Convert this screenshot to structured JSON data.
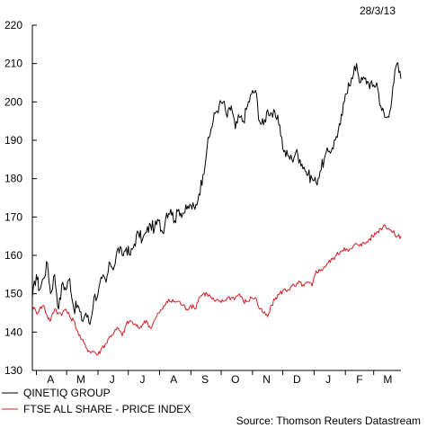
{
  "chart_data": {
    "type": "line",
    "date": "28/3/13",
    "source": "Source: Thomson Reuters Datastream",
    "y_range": [
      130,
      220
    ],
    "y_ticks": [
      130,
      140,
      150,
      160,
      170,
      180,
      190,
      200,
      210,
      220
    ],
    "x_range": [
      "2012-03-28",
      "2013-03-28"
    ],
    "months": [
      {
        "label": "A",
        "date": "2012-04-15"
      },
      {
        "label": "M",
        "date": "2012-05-15"
      },
      {
        "label": "J",
        "date": "2012-06-15"
      },
      {
        "label": "J",
        "date": "2012-07-15"
      },
      {
        "label": "A",
        "date": "2012-08-15"
      },
      {
        "label": "S",
        "date": "2012-09-15"
      },
      {
        "label": "O",
        "date": "2012-10-15"
      },
      {
        "label": "N",
        "date": "2012-11-15"
      },
      {
        "label": "D",
        "date": "2012-12-15"
      },
      {
        "label": "J",
        "date": "2013-01-15"
      },
      {
        "label": "F",
        "date": "2013-02-15"
      },
      {
        "label": "M",
        "date": "2013-03-15"
      }
    ],
    "grid": false,
    "legend_position": "bottom-left",
    "series": [
      {
        "name": "QINETIQ GROUP",
        "color": "#000000",
        "points": [
          [
            "2012-03-28",
            149
          ],
          [
            "2012-04-01",
            155
          ],
          [
            "2012-04-04",
            151
          ],
          [
            "2012-04-08",
            154
          ],
          [
            "2012-04-12",
            158
          ],
          [
            "2012-04-15",
            150
          ],
          [
            "2012-04-19",
            155
          ],
          [
            "2012-04-23",
            146
          ],
          [
            "2012-04-27",
            153
          ],
          [
            "2012-04-30",
            151
          ],
          [
            "2012-05-04",
            154
          ],
          [
            "2012-05-08",
            146
          ],
          [
            "2012-05-12",
            147
          ],
          [
            "2012-05-16",
            143
          ],
          [
            "2012-05-20",
            145
          ],
          [
            "2012-05-24",
            142
          ],
          [
            "2012-05-28",
            149
          ],
          [
            "2012-06-01",
            150
          ],
          [
            "2012-06-05",
            154
          ],
          [
            "2012-06-09",
            153
          ],
          [
            "2012-06-13",
            158
          ],
          [
            "2012-06-17",
            157
          ],
          [
            "2012-06-21",
            162
          ],
          [
            "2012-06-25",
            160
          ],
          [
            "2012-06-29",
            162
          ],
          [
            "2012-07-03",
            160
          ],
          [
            "2012-07-07",
            163
          ],
          [
            "2012-07-11",
            166
          ],
          [
            "2012-07-15",
            164
          ],
          [
            "2012-07-19",
            166
          ],
          [
            "2012-07-23",
            168
          ],
          [
            "2012-07-27",
            167
          ],
          [
            "2012-07-31",
            169
          ],
          [
            "2012-08-04",
            166
          ],
          [
            "2012-08-08",
            171
          ],
          [
            "2012-08-12",
            172
          ],
          [
            "2012-08-16",
            169
          ],
          [
            "2012-08-20",
            172
          ],
          [
            "2012-08-24",
            171
          ],
          [
            "2012-08-28",
            172
          ],
          [
            "2012-09-01",
            173
          ],
          [
            "2012-09-05",
            172
          ],
          [
            "2012-09-09",
            176
          ],
          [
            "2012-09-13",
            181
          ],
          [
            "2012-09-17",
            188
          ],
          [
            "2012-09-21",
            193
          ],
          [
            "2012-09-25",
            197
          ],
          [
            "2012-09-29",
            199
          ],
          [
            "2012-10-03",
            200
          ],
          [
            "2012-10-07",
            196
          ],
          [
            "2012-10-11",
            199
          ],
          [
            "2012-10-15",
            193
          ],
          [
            "2012-10-19",
            196
          ],
          [
            "2012-10-23",
            195
          ],
          [
            "2012-10-27",
            199
          ],
          [
            "2012-10-31",
            202
          ],
          [
            "2012-11-04",
            203
          ],
          [
            "2012-11-08",
            195
          ],
          [
            "2012-11-12",
            194
          ],
          [
            "2012-11-16",
            198
          ],
          [
            "2012-11-20",
            197
          ],
          [
            "2012-11-24",
            196
          ],
          [
            "2012-11-28",
            194
          ],
          [
            "2012-12-02",
            187
          ],
          [
            "2012-12-06",
            186
          ],
          [
            "2012-12-10",
            185
          ],
          [
            "2012-12-14",
            187
          ],
          [
            "2012-12-18",
            185
          ],
          [
            "2012-12-22",
            183
          ],
          [
            "2012-12-26",
            181
          ],
          [
            "2012-12-30",
            180
          ],
          [
            "2013-01-03",
            179
          ],
          [
            "2013-01-07",
            182
          ],
          [
            "2013-01-11",
            185
          ],
          [
            "2013-01-15",
            187
          ],
          [
            "2013-01-19",
            188
          ],
          [
            "2013-01-23",
            191
          ],
          [
            "2013-01-27",
            194
          ],
          [
            "2013-01-31",
            200
          ],
          [
            "2013-02-04",
            205
          ],
          [
            "2013-02-08",
            206
          ],
          [
            "2013-02-12",
            210
          ],
          [
            "2013-02-16",
            205
          ],
          [
            "2013-02-20",
            206
          ],
          [
            "2013-02-24",
            205
          ],
          [
            "2013-02-28",
            204
          ],
          [
            "2013-03-04",
            205
          ],
          [
            "2013-03-08",
            199
          ],
          [
            "2013-03-12",
            196
          ],
          [
            "2013-03-16",
            196
          ],
          [
            "2013-03-20",
            204
          ],
          [
            "2013-03-24",
            210
          ],
          [
            "2013-03-28",
            206
          ]
        ]
      },
      {
        "name": "FTSE ALL SHARE - PRICE INDEX",
        "color": "#d32026",
        "points": [
          [
            "2012-03-28",
            147
          ],
          [
            "2012-04-01",
            145
          ],
          [
            "2012-04-04",
            146
          ],
          [
            "2012-04-08",
            147
          ],
          [
            "2012-04-12",
            144
          ],
          [
            "2012-04-15",
            143
          ],
          [
            "2012-04-19",
            146
          ],
          [
            "2012-04-23",
            145
          ],
          [
            "2012-04-27",
            145
          ],
          [
            "2012-04-30",
            146
          ],
          [
            "2012-05-04",
            144
          ],
          [
            "2012-05-08",
            143
          ],
          [
            "2012-05-12",
            140
          ],
          [
            "2012-05-16",
            138
          ],
          [
            "2012-05-20",
            136
          ],
          [
            "2012-05-24",
            135
          ],
          [
            "2012-05-28",
            135
          ],
          [
            "2012-06-01",
            134
          ],
          [
            "2012-06-05",
            136
          ],
          [
            "2012-06-09",
            137
          ],
          [
            "2012-06-13",
            139
          ],
          [
            "2012-06-17",
            140
          ],
          [
            "2012-06-21",
            141
          ],
          [
            "2012-06-25",
            139
          ],
          [
            "2012-06-29",
            142
          ],
          [
            "2012-07-03",
            143
          ],
          [
            "2012-07-07",
            142
          ],
          [
            "2012-07-11",
            141
          ],
          [
            "2012-07-15",
            142
          ],
          [
            "2012-07-19",
            143
          ],
          [
            "2012-07-23",
            141
          ],
          [
            "2012-07-27",
            143
          ],
          [
            "2012-07-31",
            145
          ],
          [
            "2012-08-04",
            146
          ],
          [
            "2012-08-08",
            148
          ],
          [
            "2012-08-12",
            148
          ],
          [
            "2012-08-16",
            148
          ],
          [
            "2012-08-20",
            148
          ],
          [
            "2012-08-24",
            147
          ],
          [
            "2012-08-28",
            146
          ],
          [
            "2012-09-01",
            147
          ],
          [
            "2012-09-05",
            146
          ],
          [
            "2012-09-09",
            149
          ],
          [
            "2012-09-13",
            150
          ],
          [
            "2012-09-17",
            150
          ],
          [
            "2012-09-21",
            149
          ],
          [
            "2012-09-25",
            148
          ],
          [
            "2012-09-29",
            148
          ],
          [
            "2012-10-03",
            148
          ],
          [
            "2012-10-07",
            149
          ],
          [
            "2012-10-11",
            149
          ],
          [
            "2012-10-15",
            149
          ],
          [
            "2012-10-19",
            150
          ],
          [
            "2012-10-23",
            148
          ],
          [
            "2012-10-27",
            148
          ],
          [
            "2012-10-31",
            149
          ],
          [
            "2012-11-04",
            149
          ],
          [
            "2012-11-08",
            146
          ],
          [
            "2012-11-12",
            145
          ],
          [
            "2012-11-16",
            144
          ],
          [
            "2012-11-20",
            147
          ],
          [
            "2012-11-24",
            149
          ],
          [
            "2012-11-28",
            150
          ],
          [
            "2012-12-02",
            151
          ],
          [
            "2012-12-06",
            151
          ],
          [
            "2012-12-10",
            152
          ],
          [
            "2012-12-14",
            152
          ],
          [
            "2012-12-18",
            153
          ],
          [
            "2012-12-22",
            152
          ],
          [
            "2012-12-26",
            153
          ],
          [
            "2012-12-30",
            152
          ],
          [
            "2013-01-03",
            156
          ],
          [
            "2013-01-07",
            156
          ],
          [
            "2013-01-11",
            157
          ],
          [
            "2013-01-15",
            158
          ],
          [
            "2013-01-19",
            159
          ],
          [
            "2013-01-23",
            160
          ],
          [
            "2013-01-27",
            161
          ],
          [
            "2013-01-31",
            162
          ],
          [
            "2013-02-04",
            161
          ],
          [
            "2013-02-08",
            162
          ],
          [
            "2013-02-12",
            163
          ],
          [
            "2013-02-16",
            163
          ],
          [
            "2013-02-20",
            163
          ],
          [
            "2013-02-24",
            164
          ],
          [
            "2013-02-28",
            165
          ],
          [
            "2013-03-04",
            166
          ],
          [
            "2013-03-08",
            167
          ],
          [
            "2013-03-12",
            168
          ],
          [
            "2013-03-16",
            167
          ],
          [
            "2013-03-20",
            166
          ],
          [
            "2013-03-24",
            165
          ],
          [
            "2013-03-28",
            165
          ]
        ]
      }
    ]
  }
}
